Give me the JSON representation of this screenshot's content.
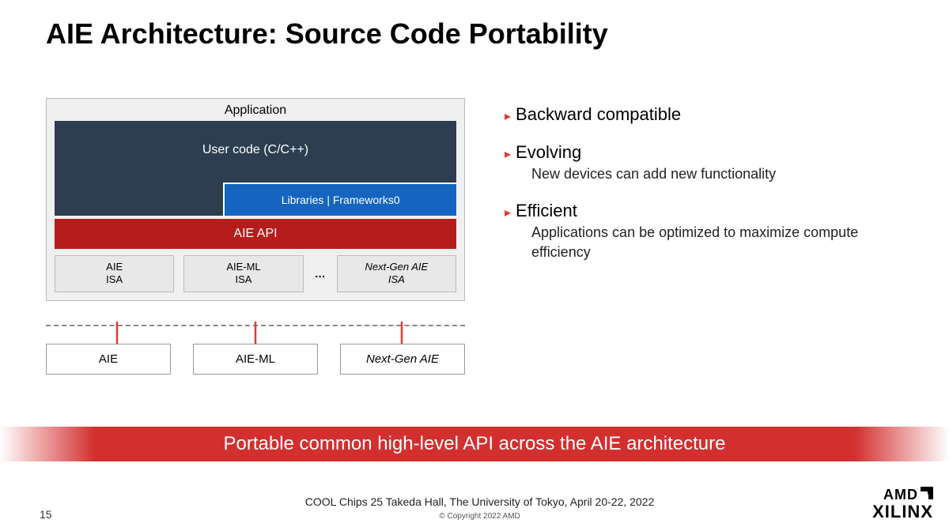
{
  "title": "AIE Architecture: Source Code Portability",
  "diagram": {
    "app_label": "Application",
    "usercode": "User code (C/C++)",
    "libraries": "Libraries  |  Frameworks0",
    "api": "AIE API",
    "isa": {
      "a": "AIE\nISA",
      "b": "AIE-ML\nISA",
      "dots": "…",
      "c": "Next-Gen AIE\nISA"
    },
    "targets": {
      "a": "AIE",
      "b": "AIE-ML",
      "c": "Next-Gen AIE"
    },
    "colors": {
      "usercode_bg": "#2c3e50",
      "libs_bg": "#1565c0",
      "api_bg": "#b71c1c",
      "isa_bg": "#e8e8e8",
      "arrow": "#e53935"
    }
  },
  "bullets": [
    {
      "head": "Backward compatible",
      "sub": ""
    },
    {
      "head": "Evolving",
      "sub": "New devices can add new functionality"
    },
    {
      "head": "Efficient",
      "sub": "Applications can be optimized to maximize compute efficiency"
    }
  ],
  "banner": "Portable common high-level API across the AIE architecture",
  "footer": {
    "page": "15",
    "venue": "COOL Chips 25 Takeda Hall, The University of Tokyo, April 20-22, 2022",
    "copyright": "© Copyright 2022 AMD",
    "brand1": "AMD",
    "brand2": "XILINX"
  }
}
